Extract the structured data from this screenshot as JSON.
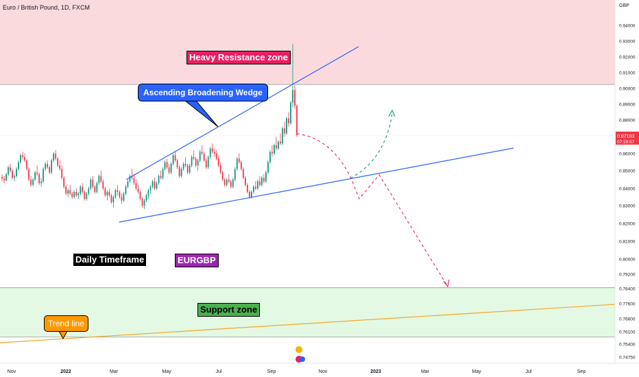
{
  "header": {
    "title": "Euro / British Pound, 1D, FXCM",
    "axis_unit": "GBP"
  },
  "annotations": {
    "resistance": "Heavy Resistance zone",
    "wedge": "Ascending Broadening Wedge",
    "timeframe": "Daily Timeframe",
    "symbol": "EURGBP",
    "support": "Support zone",
    "trendline": "Trend line"
  },
  "price_tag": {
    "value": "0.87103",
    "timer": "07:19:57"
  },
  "colors": {
    "up": "#089981",
    "down": "#f23645",
    "resistance_fill": "#fadadd",
    "support_fill": "#e3f9e3",
    "wedge_line": "#2962ff",
    "trend_line": "#f5a623",
    "projection_down": "#e91e63",
    "projection_up": "#089981",
    "resistance_label_bg": "#e91e63",
    "wedge_label_bg": "#2962ff",
    "support_label_bg": "#4caf50",
    "timeframe_label_bg": "#000000",
    "symbol_label_bg": "#9c27b0",
    "trendline_label_bg": "#ff9800"
  },
  "chart_data": {
    "type": "candlestick",
    "title": "Euro / British Pound, 1D, FXCM",
    "yunit": "GBP",
    "ylim": [
      0.7452,
      0.9495
    ],
    "yticks": [
      "0.94000",
      "0.93000",
      "0.92000",
      "0.91000",
      "0.90000",
      "0.89000",
      "0.88000",
      "0.86000",
      "0.85000",
      "0.84000",
      "0.83000",
      "0.82000",
      "0.81000",
      "0.80000",
      "0.79200",
      "0.78400",
      "0.77600",
      "0.76800",
      "0.76100",
      "0.75400",
      "0.74750"
    ],
    "xticks": [
      "Nov",
      "2022",
      "Mar",
      "May",
      "Jul",
      "Sep",
      "Nov",
      "2023",
      "Mar",
      "May",
      "Jul",
      "Sep"
    ],
    "zones": [
      {
        "name": "Heavy Resistance zone",
        "from": 0.9025,
        "to": 0.9495
      },
      {
        "name": "Support zone",
        "from": 0.758,
        "to": 0.7845
      }
    ],
    "candles": [
      [
        0.8465,
        0.848,
        0.844,
        0.8455
      ],
      [
        0.8455,
        0.847,
        0.843,
        0.8445
      ],
      [
        0.8445,
        0.849,
        0.844,
        0.848
      ],
      [
        0.848,
        0.853,
        0.847,
        0.852
      ],
      [
        0.852,
        0.854,
        0.849,
        0.85
      ],
      [
        0.85,
        0.851,
        0.845,
        0.846
      ],
      [
        0.846,
        0.848,
        0.844,
        0.847
      ],
      [
        0.847,
        0.852,
        0.846,
        0.851
      ],
      [
        0.851,
        0.856,
        0.85,
        0.855
      ],
      [
        0.855,
        0.86,
        0.854,
        0.859
      ],
      [
        0.859,
        0.861,
        0.857,
        0.858
      ],
      [
        0.858,
        0.86,
        0.855,
        0.856
      ],
      [
        0.856,
        0.857,
        0.85,
        0.851
      ],
      [
        0.851,
        0.852,
        0.844,
        0.845
      ],
      [
        0.845,
        0.847,
        0.841,
        0.842
      ],
      [
        0.842,
        0.846,
        0.841,
        0.845
      ],
      [
        0.845,
        0.85,
        0.844,
        0.849
      ],
      [
        0.849,
        0.853,
        0.847,
        0.848
      ],
      [
        0.848,
        0.849,
        0.842,
        0.843
      ],
      [
        0.843,
        0.846,
        0.841,
        0.844
      ],
      [
        0.844,
        0.852,
        0.843,
        0.851
      ],
      [
        0.851,
        0.855,
        0.85,
        0.854
      ],
      [
        0.854,
        0.856,
        0.851,
        0.852
      ],
      [
        0.852,
        0.853,
        0.848,
        0.849
      ],
      [
        0.849,
        0.857,
        0.848,
        0.856
      ],
      [
        0.856,
        0.861,
        0.855,
        0.86
      ],
      [
        0.86,
        0.862,
        0.856,
        0.857
      ],
      [
        0.857,
        0.858,
        0.852,
        0.853
      ],
      [
        0.853,
        0.856,
        0.85,
        0.851
      ],
      [
        0.851,
        0.853,
        0.845,
        0.846
      ],
      [
        0.846,
        0.847,
        0.84,
        0.841
      ],
      [
        0.841,
        0.842,
        0.836,
        0.837
      ],
      [
        0.837,
        0.84,
        0.835,
        0.839
      ],
      [
        0.839,
        0.842,
        0.836,
        0.837
      ],
      [
        0.837,
        0.838,
        0.834,
        0.835
      ],
      [
        0.835,
        0.839,
        0.834,
        0.838
      ],
      [
        0.838,
        0.84,
        0.835,
        0.836
      ],
      [
        0.836,
        0.838,
        0.834,
        0.837
      ],
      [
        0.837,
        0.842,
        0.836,
        0.841
      ],
      [
        0.841,
        0.843,
        0.837,
        0.838
      ],
      [
        0.838,
        0.839,
        0.833,
        0.834
      ],
      [
        0.834,
        0.838,
        0.833,
        0.837
      ],
      [
        0.837,
        0.841,
        0.836,
        0.84
      ],
      [
        0.84,
        0.846,
        0.839,
        0.845
      ],
      [
        0.845,
        0.847,
        0.84,
        0.841
      ],
      [
        0.841,
        0.842,
        0.837,
        0.838
      ],
      [
        0.838,
        0.844,
        0.837,
        0.843
      ],
      [
        0.843,
        0.848,
        0.842,
        0.847
      ],
      [
        0.847,
        0.85,
        0.843,
        0.844
      ],
      [
        0.844,
        0.845,
        0.839,
        0.84
      ],
      [
        0.84,
        0.841,
        0.835,
        0.836
      ],
      [
        0.836,
        0.839,
        0.833,
        0.838
      ],
      [
        0.838,
        0.84,
        0.835,
        0.836
      ],
      [
        0.836,
        0.837,
        0.831,
        0.832
      ],
      [
        0.832,
        0.836,
        0.829,
        0.835
      ],
      [
        0.835,
        0.84,
        0.834,
        0.839
      ],
      [
        0.839,
        0.842,
        0.836,
        0.838
      ],
      [
        0.838,
        0.839,
        0.834,
        0.835
      ],
      [
        0.835,
        0.837,
        0.831,
        0.833
      ],
      [
        0.833,
        0.838,
        0.832,
        0.837
      ],
      [
        0.837,
        0.842,
        0.836,
        0.841
      ],
      [
        0.841,
        0.845,
        0.84,
        0.844
      ],
      [
        0.844,
        0.848,
        0.843,
        0.847
      ],
      [
        0.847,
        0.851,
        0.845,
        0.846
      ],
      [
        0.846,
        0.848,
        0.842,
        0.843
      ],
      [
        0.843,
        0.845,
        0.839,
        0.84
      ],
      [
        0.84,
        0.842,
        0.837,
        0.838
      ],
      [
        0.838,
        0.839,
        0.833,
        0.834
      ],
      [
        0.834,
        0.835,
        0.829,
        0.83
      ],
      [
        0.83,
        0.834,
        0.828,
        0.833
      ],
      [
        0.833,
        0.837,
        0.832,
        0.836
      ],
      [
        0.836,
        0.84,
        0.834,
        0.839
      ],
      [
        0.839,
        0.842,
        0.837,
        0.841
      ],
      [
        0.841,
        0.845,
        0.84,
        0.844
      ],
      [
        0.844,
        0.846,
        0.839,
        0.84
      ],
      [
        0.84,
        0.844,
        0.839,
        0.843
      ],
      [
        0.843,
        0.848,
        0.842,
        0.847
      ],
      [
        0.847,
        0.85,
        0.845,
        0.846
      ],
      [
        0.846,
        0.852,
        0.845,
        0.851
      ],
      [
        0.851,
        0.856,
        0.85,
        0.855
      ],
      [
        0.855,
        0.857,
        0.851,
        0.852
      ],
      [
        0.852,
        0.854,
        0.848,
        0.849
      ],
      [
        0.849,
        0.855,
        0.848,
        0.854
      ],
      [
        0.854,
        0.86,
        0.853,
        0.859
      ],
      [
        0.859,
        0.861,
        0.855,
        0.856
      ],
      [
        0.856,
        0.857,
        0.851,
        0.852
      ],
      [
        0.852,
        0.853,
        0.846,
        0.847
      ],
      [
        0.847,
        0.852,
        0.846,
        0.851
      ],
      [
        0.851,
        0.855,
        0.85,
        0.854
      ],
      [
        0.854,
        0.858,
        0.852,
        0.853
      ],
      [
        0.853,
        0.854,
        0.848,
        0.849
      ],
      [
        0.849,
        0.854,
        0.848,
        0.853
      ],
      [
        0.853,
        0.859,
        0.852,
        0.858
      ],
      [
        0.858,
        0.862,
        0.856,
        0.857
      ],
      [
        0.857,
        0.858,
        0.852,
        0.853
      ],
      [
        0.853,
        0.857,
        0.85,
        0.856
      ],
      [
        0.856,
        0.862,
        0.855,
        0.861
      ],
      [
        0.861,
        0.865,
        0.859,
        0.86
      ],
      [
        0.86,
        0.861,
        0.855,
        0.856
      ],
      [
        0.856,
        0.857,
        0.851,
        0.852
      ],
      [
        0.852,
        0.859,
        0.851,
        0.858
      ],
      [
        0.858,
        0.864,
        0.857,
        0.863
      ],
      [
        0.863,
        0.866,
        0.86,
        0.861
      ],
      [
        0.861,
        0.863,
        0.858,
        0.86
      ],
      [
        0.86,
        0.862,
        0.856,
        0.857
      ],
      [
        0.857,
        0.859,
        0.852,
        0.853
      ],
      [
        0.853,
        0.855,
        0.848,
        0.849
      ],
      [
        0.849,
        0.85,
        0.844,
        0.845
      ],
      [
        0.845,
        0.846,
        0.841,
        0.842
      ],
      [
        0.842,
        0.846,
        0.841,
        0.845
      ],
      [
        0.845,
        0.848,
        0.843,
        0.844
      ],
      [
        0.844,
        0.845,
        0.84,
        0.841
      ],
      [
        0.841,
        0.846,
        0.84,
        0.845
      ],
      [
        0.845,
        0.852,
        0.844,
        0.851
      ],
      [
        0.851,
        0.858,
        0.85,
        0.857
      ],
      [
        0.857,
        0.86,
        0.854,
        0.855
      ],
      [
        0.855,
        0.856,
        0.85,
        0.851
      ],
      [
        0.851,
        0.852,
        0.845,
        0.846
      ],
      [
        0.846,
        0.847,
        0.841,
        0.842
      ],
      [
        0.842,
        0.843,
        0.837,
        0.838
      ],
      [
        0.838,
        0.839,
        0.834,
        0.835
      ],
      [
        0.835,
        0.839,
        0.834,
        0.838
      ],
      [
        0.838,
        0.842,
        0.837,
        0.841
      ],
      [
        0.841,
        0.844,
        0.839,
        0.84
      ],
      [
        0.84,
        0.845,
        0.839,
        0.844
      ],
      [
        0.844,
        0.847,
        0.841,
        0.842
      ],
      [
        0.842,
        0.847,
        0.841,
        0.846
      ],
      [
        0.846,
        0.848,
        0.843,
        0.844
      ],
      [
        0.844,
        0.85,
        0.843,
        0.849
      ],
      [
        0.849,
        0.856,
        0.848,
        0.855
      ],
      [
        0.855,
        0.862,
        0.854,
        0.861
      ],
      [
        0.861,
        0.865,
        0.858,
        0.86
      ],
      [
        0.86,
        0.866,
        0.859,
        0.865
      ],
      [
        0.865,
        0.87,
        0.862,
        0.863
      ],
      [
        0.863,
        0.868,
        0.862,
        0.867
      ],
      [
        0.867,
        0.872,
        0.865,
        0.866
      ],
      [
        0.866,
        0.876,
        0.865,
        0.875
      ],
      [
        0.875,
        0.879,
        0.87,
        0.872
      ],
      [
        0.872,
        0.882,
        0.871,
        0.881
      ],
      [
        0.881,
        0.885,
        0.876,
        0.878
      ],
      [
        0.878,
        0.892,
        0.877,
        0.891
      ],
      [
        0.891,
        0.928,
        0.888,
        0.899
      ],
      [
        0.899,
        0.902,
        0.887,
        0.889
      ],
      [
        0.889,
        0.89,
        0.87,
        0.871
      ]
    ]
  }
}
